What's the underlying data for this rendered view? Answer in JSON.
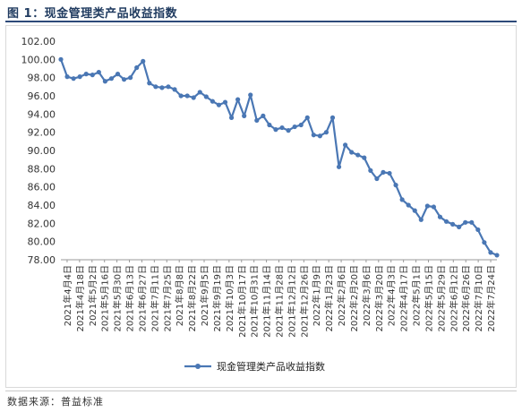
{
  "figure_title": "图 1：现金管理类产品收益指数",
  "source_note": "数据来源：普益标准",
  "colors": {
    "line": "#4a77b4",
    "marker": "#4a77b4",
    "axis": "#999999",
    "title_rule": "#2e4a7a"
  },
  "chart_data": {
    "type": "line",
    "title": "",
    "xlabel": "",
    "ylabel": "",
    "ylim": [
      78.0,
      102.0
    ],
    "yticks": [
      "102.00",
      "100.00",
      "98.00",
      "96.00",
      "94.00",
      "92.00",
      "90.00",
      "88.00",
      "86.00",
      "84.00",
      "82.00",
      "80.00",
      "78.00"
    ],
    "grid": false,
    "legend_position": "bottom-center",
    "x_labels": [
      "2021年4月4日",
      "2021年4月18日",
      "2021年5月2日",
      "2021年5月16日",
      "2021年5月30日",
      "2021年6月13日",
      "2021年6月27日",
      "2021年7月11日",
      "2021年7月25日",
      "2021年8月8日",
      "2021年8月22日",
      "2021年9月5日",
      "2021年9月19日",
      "2021年10月3日",
      "2021年10月17日",
      "2021年10月31日",
      "2021年11月14日",
      "2021年11月28日",
      "2021年12月12日",
      "2021年12月26日",
      "2022年1月9日",
      "2022年1月23日",
      "2022年2月6日",
      "2022年2月20日",
      "2022年3月6日",
      "2022年3月20日",
      "2022年4月3日",
      "2022年4月17日",
      "2022年5月1日",
      "2022年5月15日",
      "2022年5月29日",
      "2022年6月12日",
      "2022年6月26日",
      "2022年7月10日",
      "2022年7月24日"
    ],
    "series": [
      {
        "name": "现金管理类产品收益指数",
        "values": [
          100.0,
          98.1,
          97.9,
          98.1,
          98.4,
          98.3,
          98.6,
          97.6,
          97.9,
          98.4,
          97.8,
          98.0,
          99.1,
          99.8,
          97.4,
          97.0,
          96.9,
          97.0,
          96.7,
          96.0,
          96.0,
          95.8,
          96.4,
          95.9,
          95.4,
          95.0,
          95.3,
          93.6,
          95.6,
          93.8,
          96.1,
          93.3,
          93.8,
          92.8,
          92.3,
          92.5,
          92.2,
          92.6,
          92.8,
          93.6,
          91.7,
          91.6,
          92.0,
          93.6,
          88.2,
          90.6,
          89.8,
          89.5,
          89.2,
          87.8,
          86.9,
          87.6,
          87.5,
          86.2,
          84.6,
          84.0,
          83.4,
          82.4,
          83.9,
          83.8,
          82.7,
          82.2,
          81.9,
          81.6,
          82.1,
          82.1,
          81.3,
          79.9,
          78.8,
          78.5
        ]
      }
    ]
  }
}
